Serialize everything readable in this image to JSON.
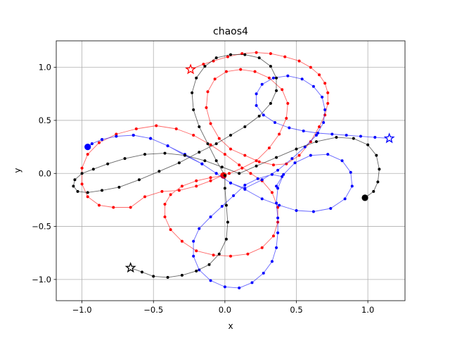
{
  "chart_data": {
    "type": "line",
    "title": "chaos4",
    "xlabel": "x",
    "ylabel": "y",
    "xlim": [
      -1.18,
      1.26
    ],
    "ylim": [
      -1.2,
      1.25
    ],
    "grid": true,
    "legend": "none",
    "xticks": [
      "−1.0",
      "−0.5",
      "0.0",
      "0.5",
      "1.0"
    ],
    "xtick_values": [
      -1.0,
      -0.5,
      0.0,
      0.5,
      1.0
    ],
    "yticks": [
      "−1.0",
      "−0.5",
      "0.0",
      "0.5",
      "1.0"
    ],
    "ytick_values": [
      -1.0,
      -0.5,
      0.0,
      0.5,
      1.0
    ],
    "series": [
      {
        "color": "#ff0000",
        "points": [
          [
            -0.24,
            0.98
          ],
          [
            -0.15,
            1.03
          ],
          [
            -0.08,
            1.06
          ],
          [
            0.02,
            1.1
          ],
          [
            0.12,
            1.13
          ],
          [
            0.22,
            1.14
          ],
          [
            0.32,
            1.13
          ],
          [
            0.42,
            1.1
          ],
          [
            0.52,
            1.06
          ],
          [
            0.6,
            1.0
          ],
          [
            0.66,
            0.93
          ],
          [
            0.7,
            0.85
          ],
          [
            0.72,
            0.76
          ],
          [
            0.72,
            0.66
          ],
          [
            0.7,
            0.55
          ],
          [
            0.66,
            0.44
          ],
          [
            0.6,
            0.3
          ],
          [
            0.52,
            0.17
          ],
          [
            0.43,
            0.09
          ],
          [
            0.34,
            0.08
          ],
          [
            0.24,
            0.11
          ],
          [
            0.14,
            0.17
          ],
          [
            0.04,
            0.23
          ],
          [
            -0.04,
            0.33
          ],
          [
            -0.1,
            0.47
          ],
          [
            -0.13,
            0.62
          ],
          [
            -0.12,
            0.77
          ],
          [
            -0.07,
            0.89
          ],
          [
            0.01,
            0.96
          ],
          [
            0.11,
            0.98
          ],
          [
            0.21,
            0.96
          ],
          [
            0.31,
            0.9
          ],
          [
            0.4,
            0.79
          ],
          [
            0.44,
            0.66
          ],
          [
            0.43,
            0.52
          ],
          [
            0.38,
            0.37
          ],
          [
            0.31,
            0.24
          ],
          [
            0.22,
            0.12
          ],
          [
            0.12,
            0.05
          ],
          [
            0.03,
            0.0
          ],
          [
            -0.02,
            -0.02
          ],
          [
            -0.1,
            -0.07
          ],
          [
            -0.2,
            -0.12
          ],
          [
            -0.32,
            -0.16
          ],
          [
            -0.44,
            -0.17
          ],
          [
            -0.56,
            -0.22
          ],
          [
            -0.66,
            -0.32
          ],
          [
            -0.78,
            -0.32
          ],
          [
            -0.88,
            -0.3
          ],
          [
            -0.96,
            -0.22
          ],
          [
            -1.0,
            -0.1
          ],
          [
            -1.0,
            0.05
          ],
          [
            -0.96,
            0.18
          ],
          [
            -0.88,
            0.29
          ],
          [
            -0.76,
            0.37
          ],
          [
            -0.62,
            0.42
          ],
          [
            -0.48,
            0.45
          ],
          [
            -0.34,
            0.42
          ],
          [
            -0.22,
            0.36
          ],
          [
            -0.1,
            0.27
          ],
          [
            0.0,
            0.18
          ],
          [
            0.1,
            0.08
          ],
          [
            0.18,
            0.0
          ],
          [
            0.26,
            -0.07
          ],
          [
            0.33,
            -0.18
          ],
          [
            0.37,
            -0.32
          ],
          [
            0.37,
            -0.46
          ],
          [
            0.34,
            -0.59
          ],
          [
            0.26,
            -0.7
          ],
          [
            0.16,
            -0.76
          ],
          [
            0.04,
            -0.78
          ],
          [
            -0.08,
            -0.77
          ],
          [
            -0.2,
            -0.73
          ],
          [
            -0.3,
            -0.64
          ],
          [
            -0.38,
            -0.53
          ],
          [
            -0.42,
            -0.41
          ],
          [
            -0.42,
            -0.29
          ],
          [
            -0.38,
            -0.2
          ],
          [
            -0.3,
            -0.12
          ],
          [
            -0.2,
            -0.07
          ],
          [
            -0.1,
            -0.04
          ],
          [
            -0.01,
            -0.02
          ]
        ],
        "start_marker": "star",
        "end_marker": "circle"
      },
      {
        "color": "#0000ff",
        "points": [
          [
            1.15,
            0.33
          ],
          [
            1.05,
            0.34
          ],
          [
            0.95,
            0.35
          ],
          [
            0.85,
            0.36
          ],
          [
            0.75,
            0.37
          ],
          [
            0.65,
            0.38
          ],
          [
            0.55,
            0.4
          ],
          [
            0.45,
            0.43
          ],
          [
            0.35,
            0.48
          ],
          [
            0.27,
            0.55
          ],
          [
            0.22,
            0.64
          ],
          [
            0.22,
            0.75
          ],
          [
            0.26,
            0.84
          ],
          [
            0.34,
            0.9
          ],
          [
            0.44,
            0.92
          ],
          [
            0.54,
            0.89
          ],
          [
            0.62,
            0.82
          ],
          [
            0.68,
            0.72
          ],
          [
            0.7,
            0.6
          ],
          [
            0.69,
            0.48
          ],
          [
            0.64,
            0.36
          ],
          [
            0.56,
            0.25
          ],
          [
            0.47,
            0.14
          ],
          [
            0.37,
            0.03
          ],
          [
            0.26,
            -0.06
          ],
          [
            0.14,
            -0.14
          ],
          [
            0.04,
            -0.09
          ],
          [
            -0.06,
            0.0
          ],
          [
            -0.16,
            0.09
          ],
          [
            -0.28,
            0.18
          ],
          [
            -0.4,
            0.26
          ],
          [
            -0.52,
            0.33
          ],
          [
            -0.64,
            0.36
          ],
          [
            -0.76,
            0.35
          ],
          [
            -0.86,
            0.32
          ],
          [
            -0.93,
            0.28
          ],
          [
            -0.96,
            0.25
          ],
          [
            -0.93,
            0.28
          ],
          [
            -0.86,
            0.32
          ],
          [
            -0.76,
            0.35
          ],
          [
            -0.64,
            0.36
          ],
          [
            -0.52,
            0.33
          ],
          [
            -0.4,
            0.26
          ],
          [
            -0.28,
            0.17
          ],
          [
            -0.16,
            0.09
          ],
          [
            -0.06,
            0.0
          ],
          [
            0.04,
            -0.09
          ],
          [
            0.14,
            -0.15
          ],
          [
            0.26,
            -0.24
          ],
          [
            0.38,
            -0.3
          ],
          [
            0.5,
            -0.35
          ],
          [
            0.62,
            -0.36
          ],
          [
            0.74,
            -0.33
          ],
          [
            0.84,
            -0.24
          ],
          [
            0.89,
            -0.12
          ],
          [
            0.88,
            0.01
          ],
          [
            0.82,
            0.12
          ],
          [
            0.72,
            0.18
          ],
          [
            0.6,
            0.17
          ],
          [
            0.49,
            0.1
          ],
          [
            0.41,
            -0.01
          ],
          [
            0.37,
            -0.14
          ],
          [
            0.36,
            -0.28
          ],
          [
            0.37,
            -0.42
          ],
          [
            0.37,
            -0.56
          ],
          [
            0.36,
            -0.7
          ],
          [
            0.33,
            -0.83
          ],
          [
            0.27,
            -0.94
          ],
          [
            0.19,
            -1.03
          ],
          [
            0.1,
            -1.08
          ],
          [
            0.0,
            -1.07
          ],
          [
            -0.1,
            -1.01
          ],
          [
            -0.18,
            -0.91
          ],
          [
            -0.22,
            -0.78
          ],
          [
            -0.22,
            -0.64
          ],
          [
            -0.18,
            -0.52
          ],
          [
            -0.1,
            -0.41
          ],
          [
            -0.02,
            -0.31
          ],
          [
            0.06,
            -0.21
          ],
          [
            0.14,
            -0.11
          ],
          [
            0.23,
            -0.05
          ],
          [
            0.33,
            -0.01
          ],
          [
            0.4,
            -0.03
          ],
          [
            0.36,
            -0.12
          ]
        ],
        "start_marker": "star",
        "end_marker": "circle",
        "end_point": [
          -0.96,
          0.25
        ]
      },
      {
        "color": "#000000",
        "points": [
          [
            -0.66,
            -0.89
          ],
          [
            -0.58,
            -0.93
          ],
          [
            -0.5,
            -0.97
          ],
          [
            -0.4,
            -0.98
          ],
          [
            -0.3,
            -0.96
          ],
          [
            -0.2,
            -0.92
          ],
          [
            -0.11,
            -0.86
          ],
          [
            -0.04,
            -0.76
          ],
          [
            0.01,
            -0.62
          ],
          [
            0.02,
            -0.46
          ],
          [
            0.01,
            -0.3
          ],
          [
            0.0,
            -0.14
          ],
          [
            0.0,
            -0.02
          ],
          [
            -0.06,
            0.12
          ],
          [
            -0.12,
            0.28
          ],
          [
            -0.18,
            0.44
          ],
          [
            -0.22,
            0.6
          ],
          [
            -0.23,
            0.76
          ],
          [
            -0.2,
            0.9
          ],
          [
            -0.14,
            1.01
          ],
          [
            -0.06,
            1.09
          ],
          [
            0.04,
            1.12
          ],
          [
            0.14,
            1.12
          ],
          [
            0.24,
            1.09
          ],
          [
            0.32,
            1.01
          ],
          [
            0.36,
            0.9
          ],
          [
            0.36,
            0.78
          ],
          [
            0.32,
            0.66
          ],
          [
            0.24,
            0.54
          ],
          [
            0.14,
            0.44
          ],
          [
            0.04,
            0.36
          ],
          [
            -0.06,
            0.28
          ],
          [
            -0.18,
            0.2
          ],
          [
            -0.32,
            0.1
          ],
          [
            -0.46,
            0.02
          ],
          [
            -0.6,
            -0.06
          ],
          [
            -0.74,
            -0.13
          ],
          [
            -0.86,
            -0.16
          ],
          [
            -0.96,
            -0.18
          ],
          [
            -1.03,
            -0.17
          ],
          [
            -1.06,
            -0.12
          ],
          [
            -1.05,
            -0.06
          ],
          [
            -1.0,
            0.0
          ],
          [
            -0.92,
            0.04
          ],
          [
            -0.82,
            0.09
          ],
          [
            -0.7,
            0.14
          ],
          [
            -0.56,
            0.18
          ],
          [
            -0.42,
            0.19
          ],
          [
            -0.28,
            0.17
          ],
          [
            -0.14,
            0.12
          ],
          [
            -0.02,
            0.06
          ],
          [
            0.1,
            0.0
          ],
          [
            0.22,
            0.07
          ],
          [
            0.36,
            0.15
          ],
          [
            0.5,
            0.23
          ],
          [
            0.64,
            0.3
          ],
          [
            0.78,
            0.34
          ],
          [
            0.9,
            0.33
          ],
          [
            1.0,
            0.27
          ],
          [
            1.06,
            0.17
          ],
          [
            1.08,
            0.04
          ],
          [
            1.07,
            -0.08
          ],
          [
            1.04,
            -0.17
          ],
          [
            0.98,
            -0.23
          ]
        ],
        "start_marker": "star",
        "end_marker": "circle"
      }
    ]
  }
}
